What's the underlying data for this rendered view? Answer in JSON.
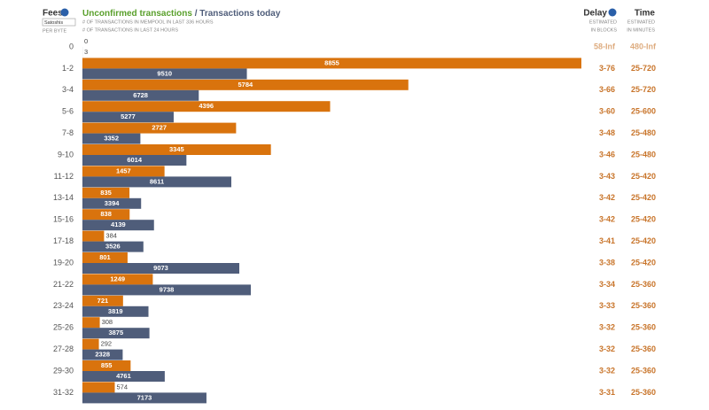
{
  "header": {
    "fees": "Fees",
    "unit_select": "Satoshis",
    "unit_sub": "PER BYTE",
    "unconfirmed": "Unconfirmed transactions",
    "separator": "/",
    "today": "Transactions today",
    "unconfirmed_sub": "# OF TRANSACTIONS IN MEMPOOL IN LAST 336 HOURS",
    "today_sub": "# OF TRANSACTIONS IN LAST 24 HOURS",
    "delay": "Delay",
    "delay_sub1": "ESTIMATED",
    "delay_sub2": "IN BLOCKS",
    "time": "Time",
    "time_sub1": "ESTIMATED",
    "time_sub2": "IN MINUTES"
  },
  "rows": [
    {
      "fee": "0",
      "unconfirmed": 0,
      "today": 3,
      "delay": "58-Inf",
      "time": "480-Inf"
    },
    {
      "fee": "1-2",
      "unconfirmed": 8855,
      "today": 9510,
      "delay": "3-76",
      "time": "25-720"
    },
    {
      "fee": "3-4",
      "unconfirmed": 5784,
      "today": 6728,
      "delay": "3-66",
      "time": "25-720"
    },
    {
      "fee": "5-6",
      "unconfirmed": 4396,
      "today": 5277,
      "delay": "3-60",
      "time": "25-600"
    },
    {
      "fee": "7-8",
      "unconfirmed": 2727,
      "today": 3352,
      "delay": "3-48",
      "time": "25-480"
    },
    {
      "fee": "9-10",
      "unconfirmed": 3345,
      "today": 6014,
      "delay": "3-46",
      "time": "25-480"
    },
    {
      "fee": "11-12",
      "unconfirmed": 1457,
      "today": 8611,
      "delay": "3-43",
      "time": "25-420"
    },
    {
      "fee": "13-14",
      "unconfirmed": 835,
      "today": 3394,
      "delay": "3-42",
      "time": "25-420"
    },
    {
      "fee": "15-16",
      "unconfirmed": 838,
      "today": 4139,
      "delay": "3-42",
      "time": "25-420"
    },
    {
      "fee": "17-18",
      "unconfirmed": 384,
      "today": 3526,
      "delay": "3-41",
      "time": "25-420"
    },
    {
      "fee": "19-20",
      "unconfirmed": 801,
      "today": 9073,
      "delay": "3-38",
      "time": "25-420"
    },
    {
      "fee": "21-22",
      "unconfirmed": 1249,
      "today": 9738,
      "delay": "3-34",
      "time": "25-360"
    },
    {
      "fee": "23-24",
      "unconfirmed": 721,
      "today": 3819,
      "delay": "3-33",
      "time": "25-360"
    },
    {
      "fee": "25-26",
      "unconfirmed": 308,
      "today": 3875,
      "delay": "3-32",
      "time": "25-360"
    },
    {
      "fee": "27-28",
      "unconfirmed": 292,
      "today": 2328,
      "delay": "3-32",
      "time": "25-360"
    },
    {
      "fee": "29-30",
      "unconfirmed": 855,
      "today": 4761,
      "delay": "3-32",
      "time": "25-360"
    },
    {
      "fee": "31-32",
      "unconfirmed": 574,
      "today": 7173,
      "delay": "3-31",
      "time": "25-360"
    }
  ]
}
